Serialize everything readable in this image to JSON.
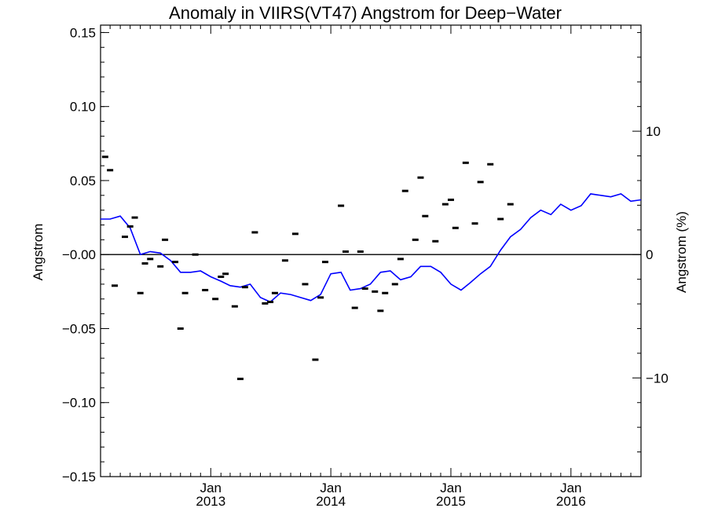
{
  "chart_data": {
    "type": "line",
    "title": "Anomaly in VIIRS(VT47) Angstrom for Deep−Water",
    "ylabel": "Angstrom",
    "ylabel_right": "Angstrom (%)",
    "xlabel": "",
    "xlim": [
      "2012-02-01",
      "2016-08-01"
    ],
    "ylim": [
      -0.15,
      0.155
    ],
    "y2lim": [
      -18.0,
      18.6
    ],
    "grid": false,
    "x_ticks": [
      {
        "date": "2013-01-01",
        "month": "Jan",
        "year": "2013"
      },
      {
        "date": "2014-01-01",
        "month": "Jan",
        "year": "2014"
      },
      {
        "date": "2015-01-01",
        "month": "Jan",
        "year": "2015"
      },
      {
        "date": "2016-01-01",
        "month": "Jan",
        "year": "2016"
      }
    ],
    "y_ticks": [
      {
        "value": 0.15,
        "label": "0.15"
      },
      {
        "value": 0.1,
        "label": "0.10"
      },
      {
        "value": 0.05,
        "label": "0.05"
      },
      {
        "value": 0.0,
        "label": "−0.00"
      },
      {
        "value": -0.05,
        "label": "−0.05"
      },
      {
        "value": -0.1,
        "label": "−0.10"
      },
      {
        "value": -0.15,
        "label": "−0.15"
      }
    ],
    "y2_ticks": [
      {
        "value": 10,
        "label": "10"
      },
      {
        "value": 0,
        "label": "0"
      },
      {
        "value": -10,
        "label": "−10"
      }
    ],
    "reference_line": 0,
    "series": [
      {
        "kind": "points",
        "color": "#000000",
        "points": [
          [
            "2012-02-15",
            0.066
          ],
          [
            "2012-03-01",
            0.057
          ],
          [
            "2012-03-15",
            -0.021
          ],
          [
            "2012-04-15",
            0.012
          ],
          [
            "2012-05-01",
            0.019
          ],
          [
            "2012-05-15",
            0.025
          ],
          [
            "2012-06-01",
            -0.026
          ],
          [
            "2012-06-15",
            -0.006
          ],
          [
            "2012-07-01",
            -0.003
          ],
          [
            "2012-08-01",
            -0.008
          ],
          [
            "2012-08-15",
            0.01
          ],
          [
            "2012-09-15",
            -0.005
          ],
          [
            "2012-10-01",
            -0.05
          ],
          [
            "2012-10-15",
            -0.026
          ],
          [
            "2012-11-15",
            0.0
          ],
          [
            "2012-12-15",
            -0.024
          ],
          [
            "2013-01-15",
            -0.03
          ],
          [
            "2013-02-01",
            -0.015
          ],
          [
            "2013-02-15",
            -0.013
          ],
          [
            "2013-03-15",
            -0.035
          ],
          [
            "2013-04-01",
            -0.084
          ],
          [
            "2013-04-15",
            -0.022
          ],
          [
            "2013-05-15",
            0.015
          ],
          [
            "2013-06-15",
            -0.033
          ],
          [
            "2013-07-01",
            -0.032
          ],
          [
            "2013-07-15",
            -0.026
          ],
          [
            "2013-08-15",
            -0.004
          ],
          [
            "2013-09-15",
            0.014
          ],
          [
            "2013-10-15",
            -0.02
          ],
          [
            "2013-11-15",
            -0.071
          ],
          [
            "2013-12-01",
            -0.029
          ],
          [
            "2013-12-15",
            -0.005
          ],
          [
            "2014-02-01",
            0.033
          ],
          [
            "2014-02-15",
            0.002
          ],
          [
            "2014-03-15",
            -0.036
          ],
          [
            "2014-04-01",
            0.002
          ],
          [
            "2014-04-15",
            -0.023
          ],
          [
            "2014-05-15",
            -0.025
          ],
          [
            "2014-06-01",
            -0.038
          ],
          [
            "2014-06-15",
            -0.026
          ],
          [
            "2014-07-15",
            -0.02
          ],
          [
            "2014-08-01",
            -0.003
          ],
          [
            "2014-08-15",
            0.043
          ],
          [
            "2014-09-15",
            0.01
          ],
          [
            "2014-10-01",
            0.052
          ],
          [
            "2014-10-15",
            0.026
          ],
          [
            "2014-11-15",
            0.009
          ],
          [
            "2014-12-15",
            0.034
          ],
          [
            "2015-01-01",
            0.037
          ],
          [
            "2015-01-15",
            0.018
          ],
          [
            "2015-02-15",
            0.062
          ],
          [
            "2015-03-15",
            0.021
          ],
          [
            "2015-04-01",
            0.049
          ],
          [
            "2015-05-01",
            0.061
          ],
          [
            "2015-06-01",
            0.024
          ],
          [
            "2015-07-01",
            0.034
          ]
        ]
      },
      {
        "kind": "line",
        "color": "#0000ff",
        "points": [
          [
            "2012-02-01",
            0.024
          ],
          [
            "2012-03-01",
            0.024
          ],
          [
            "2012-04-01",
            0.026
          ],
          [
            "2012-05-01",
            0.018
          ],
          [
            "2012-06-01",
            0.0
          ],
          [
            "2012-07-01",
            0.002
          ],
          [
            "2012-08-01",
            0.001
          ],
          [
            "2012-09-01",
            -0.004
          ],
          [
            "2012-10-01",
            -0.012
          ],
          [
            "2012-11-01",
            -0.012
          ],
          [
            "2012-12-01",
            -0.011
          ],
          [
            "2013-01-01",
            -0.015
          ],
          [
            "2013-02-01",
            -0.018
          ],
          [
            "2013-03-01",
            -0.021
          ],
          [
            "2013-04-01",
            -0.022
          ],
          [
            "2013-05-01",
            -0.02
          ],
          [
            "2013-06-01",
            -0.029
          ],
          [
            "2013-07-01",
            -0.032
          ],
          [
            "2013-08-01",
            -0.026
          ],
          [
            "2013-09-01",
            -0.027
          ],
          [
            "2013-10-01",
            -0.029
          ],
          [
            "2013-11-01",
            -0.031
          ],
          [
            "2013-12-01",
            -0.027
          ],
          [
            "2014-01-01",
            -0.013
          ],
          [
            "2014-02-01",
            -0.012
          ],
          [
            "2014-03-01",
            -0.024
          ],
          [
            "2014-04-01",
            -0.023
          ],
          [
            "2014-05-01",
            -0.02
          ],
          [
            "2014-06-01",
            -0.012
          ],
          [
            "2014-07-01",
            -0.011
          ],
          [
            "2014-08-01",
            -0.017
          ],
          [
            "2014-09-01",
            -0.015
          ],
          [
            "2014-10-01",
            -0.008
          ],
          [
            "2014-11-01",
            -0.008
          ],
          [
            "2014-12-01",
            -0.012
          ],
          [
            "2015-01-01",
            -0.02
          ],
          [
            "2015-02-01",
            -0.024
          ],
          [
            "2015-03-01",
            -0.019
          ],
          [
            "2015-04-01",
            -0.013
          ],
          [
            "2015-05-01",
            -0.008
          ],
          [
            "2015-06-01",
            0.003
          ],
          [
            "2015-07-01",
            0.012
          ],
          [
            "2015-08-01",
            0.017
          ],
          [
            "2015-09-01",
            0.025
          ],
          [
            "2015-10-01",
            0.03
          ],
          [
            "2015-11-01",
            0.027
          ],
          [
            "2015-12-01",
            0.034
          ],
          [
            "2016-01-01",
            0.03
          ],
          [
            "2016-02-01",
            0.033
          ],
          [
            "2016-03-01",
            0.041
          ],
          [
            "2016-04-01",
            0.04
          ],
          [
            "2016-05-01",
            0.039
          ],
          [
            "2016-06-01",
            0.041
          ],
          [
            "2016-07-01",
            0.036
          ],
          [
            "2016-08-01",
            0.037
          ]
        ]
      }
    ]
  }
}
